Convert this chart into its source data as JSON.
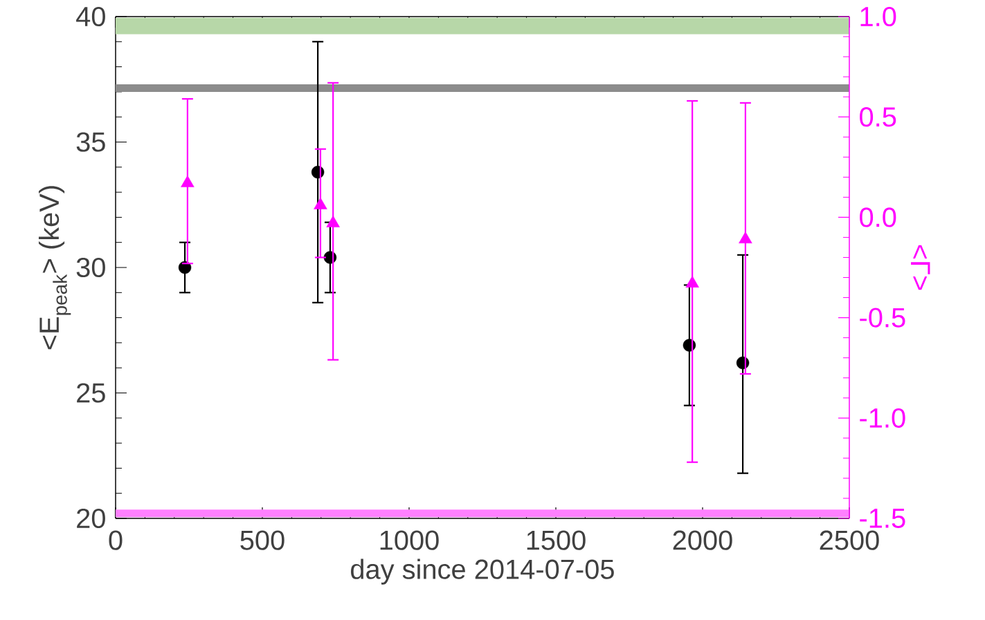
{
  "chart_data": {
    "type": "scatter",
    "xlabel": "day since 2014-07-05",
    "ylabel": "<E$_{peak}$>  (keV)",
    "y2label": "<Γ>",
    "xlim": [
      0,
      2500
    ],
    "xticks": [
      0,
      500,
      1000,
      1500,
      2000,
      2500
    ],
    "ylim": [
      20,
      40
    ],
    "yticks": [
      20,
      25,
      30,
      35,
      40
    ],
    "y2lim": [
      -1.5,
      1.0
    ],
    "y2ticks": [
      -1.5,
      {
        "value": -1,
        "label": "-1.0"
      },
      -0.5,
      {
        "value": 0,
        "label": "0.0"
      },
      0.5,
      {
        "value": 1,
        "label": "1.0"
      }
    ],
    "bands": [
      {
        "axis": "y",
        "from": 39.3,
        "to": 39.95,
        "color": "#b7d7a8"
      },
      {
        "axis": "y",
        "from": 37.0,
        "to": 37.3,
        "color": "#8c8c8c"
      },
      {
        "axis": "y",
        "from": 20.05,
        "to": 20.35,
        "color": "#ff80ff"
      }
    ],
    "series": [
      {
        "color": "#000000",
        "marker": "circle",
        "x": [
          236,
          689,
          731,
          1955,
          2137
        ],
        "values": [
          30.0,
          33.8,
          30.4,
          26.9,
          26.2
        ],
        "errors": [
          [
            29.0,
            31.0
          ],
          [
            28.6,
            39.0
          ],
          [
            29.0,
            31.8
          ],
          [
            24.5,
            29.3
          ],
          [
            21.8,
            30.5
          ]
        ]
      },
      {
        "color": "#ff00ff",
        "marker": "triangle",
        "axis": "y2",
        "x": [
          245,
          698,
          741,
          1965,
          2146
        ],
        "values": [
          0.17,
          0.06,
          -0.03,
          -0.33,
          -0.11
        ],
        "errors": [
          [
            -0.23,
            0.59
          ],
          [
            -0.2,
            0.34
          ],
          [
            -0.71,
            0.67
          ],
          [
            -1.22,
            0.58
          ],
          [
            -0.78,
            0.57
          ]
        ]
      }
    ]
  }
}
